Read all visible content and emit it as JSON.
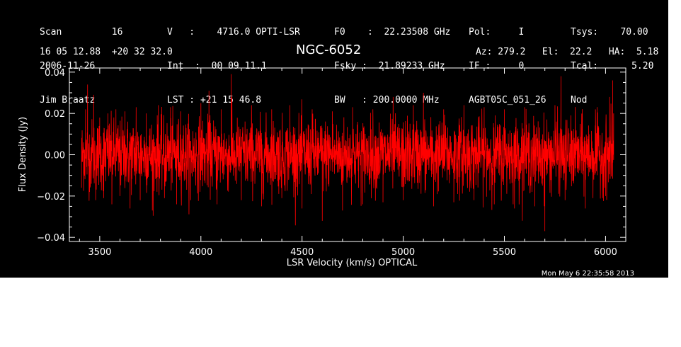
{
  "header": {
    "col1": [
      "Scan         16",
      "2006-11-26",
      "Jim Braatz"
    ],
    "col2": [
      "V   :    4716.0 OPTI-LSR",
      "Int  :  00 09 11.1",
      "LST : +21 15 46.8"
    ],
    "col3": [
      "F0    :  22.23508 GHz",
      "Fsky :  21.89233 GHz",
      "BW   : 200.0000 MHz"
    ],
    "col4": [
      "Pol:     I",
      "IF :     0",
      "AGBT05C_051_26"
    ],
    "col5": [
      "Tsys:    70.00",
      "Tcal:      5.20",
      "Nod"
    ],
    "coords": "16 05 12.88  +20 32 32.0",
    "source": "NGC-6052",
    "azelha": "Az: 279.2   El:  22.2   HA:  5.18",
    "timestamp": "Mon May  6 22:35:58 2013"
  },
  "colors": {
    "background": "#000000",
    "axes": "#ffffff",
    "spectrum": "#ff0000"
  },
  "chart_data": {
    "type": "line",
    "xlabel": "LSR Velocity (km/s) OPTICAL",
    "ylabel": "Flux Density (Jy)",
    "xlim": [
      3350,
      6100
    ],
    "ylim": [
      -0.042,
      0.042
    ],
    "xticks": [
      3500,
      4000,
      4500,
      5000,
      5500,
      6000
    ],
    "yticks": [
      -0.04,
      -0.02,
      0.0,
      0.02,
      0.04
    ],
    "ytick_labels": [
      "−0.04",
      "−0.02",
      "0.00",
      "0.02",
      "0.04"
    ],
    "grid": false,
    "series": [
      {
        "x_start": 3410,
        "x_end": 6040,
        "noise_rms": 0.0085,
        "values": [
          [
            3410,
            -0.016
          ],
          [
            3420,
            0.006
          ],
          [
            3430,
            0.022
          ],
          [
            3440,
            0.034
          ],
          [
            3450,
            -0.018
          ],
          [
            3470,
            0.029
          ],
          [
            3480,
            -0.022
          ],
          [
            3500,
            0.018
          ],
          [
            3520,
            -0.021
          ],
          [
            3540,
            0.02
          ],
          [
            3560,
            -0.024
          ],
          [
            3580,
            0.022
          ],
          [
            3600,
            -0.02
          ],
          [
            3625,
            0.021
          ],
          [
            3650,
            -0.026
          ],
          [
            3680,
            0.023
          ],
          [
            3700,
            -0.022
          ],
          [
            3730,
            0.02
          ],
          [
            3760,
            -0.027
          ],
          [
            3790,
            0.024
          ],
          [
            3820,
            -0.021
          ],
          [
            3850,
            0.023
          ],
          [
            3880,
            -0.024
          ],
          [
            3900,
            0.021
          ],
          [
            3950,
            -0.022
          ],
          [
            4000,
            0.025
          ],
          [
            4040,
            0.031
          ],
          [
            4080,
            -0.024
          ],
          [
            4100,
            0.022
          ],
          [
            4150,
            0.039
          ],
          [
            4200,
            -0.022
          ],
          [
            4250,
            0.024
          ],
          [
            4300,
            -0.025
          ],
          [
            4350,
            0.022
          ],
          [
            4400,
            -0.021
          ],
          [
            4440,
            0.024
          ],
          [
            4500,
            -0.026
          ],
          [
            4550,
            0.022
          ],
          [
            4600,
            -0.032
          ],
          [
            4650,
            0.021
          ],
          [
            4700,
            -0.027
          ],
          [
            4750,
            0.023
          ],
          [
            4800,
            -0.024
          ],
          [
            4850,
            0.022
          ],
          [
            4900,
            -0.023
          ],
          [
            4950,
            0.028
          ],
          [
            5000,
            -0.022
          ],
          [
            5050,
            0.024
          ],
          [
            5100,
            0.03
          ],
          [
            5150,
            -0.025
          ],
          [
            5200,
            0.022
          ],
          [
            5250,
            -0.023
          ],
          [
            5300,
            0.024
          ],
          [
            5350,
            -0.022
          ],
          [
            5400,
            0.023
          ],
          [
            5450,
            -0.024
          ],
          [
            5500,
            0.022
          ],
          [
            5550,
            -0.026
          ],
          [
            5600,
            0.023
          ],
          [
            5650,
            -0.025
          ],
          [
            5700,
            -0.037
          ],
          [
            5750,
            0.024
          ],
          [
            5780,
            0.038
          ],
          [
            5800,
            -0.022
          ],
          [
            5850,
            0.023
          ],
          [
            5900,
            -0.026
          ],
          [
            5950,
            0.022
          ],
          [
            6000,
            -0.02
          ],
          [
            6020,
            0.028
          ],
          [
            6035,
            0.036
          ],
          [
            6040,
            0.02
          ]
        ]
      }
    ]
  }
}
